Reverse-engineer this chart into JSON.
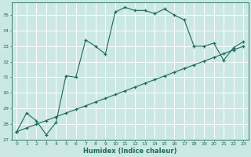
{
  "xlabel": "Humidex (Indice chaleur)",
  "bg_color": "#cce8e5",
  "line_color": "#1a6b5a",
  "grid_color": "#ffffff",
  "xlim": [
    -0.5,
    23.5
  ],
  "ylim": [
    27,
    35.8
  ],
  "yticks": [
    27,
    28,
    29,
    30,
    31,
    32,
    33,
    34,
    35
  ],
  "xticks": [
    0,
    1,
    2,
    3,
    4,
    5,
    6,
    7,
    8,
    9,
    10,
    11,
    12,
    13,
    14,
    15,
    16,
    17,
    18,
    19,
    20,
    21,
    22,
    23
  ],
  "line1_x": [
    0,
    1,
    2,
    3,
    4,
    5,
    6,
    7,
    8,
    9,
    10,
    11,
    12,
    13,
    14,
    15,
    16,
    17,
    18,
    19,
    20,
    21,
    22,
    23
  ],
  "line1_y": [
    27.5,
    28.7,
    28.2,
    27.3,
    28.1,
    31.1,
    31.0,
    33.4,
    33.0,
    32.5,
    35.2,
    35.5,
    35.3,
    35.3,
    35.1,
    35.4,
    35.0,
    34.7,
    33.0,
    33.0,
    33.2,
    32.1,
    32.9,
    33.3
  ],
  "line2_x": [
    0,
    1,
    2,
    3,
    4,
    5,
    6,
    7,
    8,
    9,
    10,
    11,
    12,
    13,
    14,
    15,
    16,
    17,
    18,
    19,
    20,
    21,
    22,
    23
  ],
  "line2_y": [
    27.5,
    27.74,
    27.98,
    28.22,
    28.46,
    28.7,
    28.93,
    29.17,
    29.41,
    29.65,
    29.89,
    30.13,
    30.37,
    30.61,
    30.85,
    31.09,
    31.33,
    31.57,
    31.8,
    32.04,
    32.28,
    32.52,
    32.76,
    33.0
  ]
}
